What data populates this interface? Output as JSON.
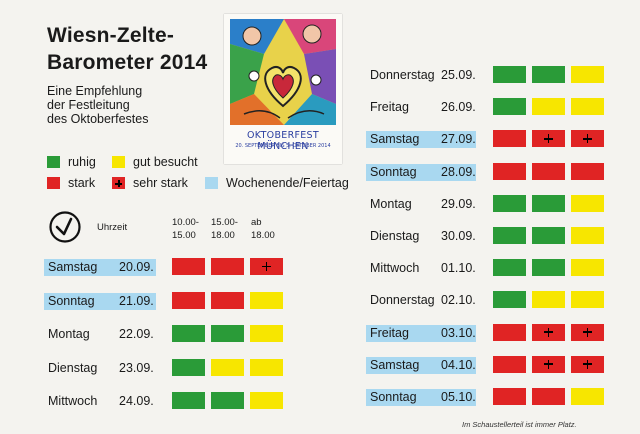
{
  "colors": {
    "ruhig": "#2a9b38",
    "gut": "#f7e600",
    "stark": "#e02424",
    "weekend": "#a9d8f0"
  },
  "title_line1": "Wiesn-Zelte-",
  "title_line2": "Barometer 2014",
  "subtitle": [
    "Eine Empfehlung",
    "der Festleitung",
    "des Oktoberfestes"
  ],
  "poster": {
    "title": "OKTOBERFEST MÜNCHEN",
    "dates": "20. SEPTEMBER BIS 5. OKTOBER 2014"
  },
  "legend": [
    {
      "key": "ruhig",
      "label": "ruhig"
    },
    {
      "key": "gut",
      "label": "gut besucht"
    },
    {
      "key": "stark",
      "label": "stark"
    },
    {
      "key": "sehr",
      "label": "sehr stark"
    },
    {
      "key": "weekend",
      "label": "Wochenende/Feiertag"
    }
  ],
  "uhrzeit": "Uhrzeit",
  "time_slots": [
    {
      "line1": "10.00-",
      "line2": "15.00"
    },
    {
      "line1": "15.00-",
      "line2": "18.00"
    },
    {
      "line1": "ab",
      "line2": "18.00"
    }
  ],
  "days_left": [
    {
      "day": "Samstag",
      "date": "20.09.",
      "weekend": true,
      "levels": [
        "stark",
        "stark",
        "sehr"
      ]
    },
    {
      "day": "Sonntag",
      "date": "21.09.",
      "weekend": true,
      "levels": [
        "stark",
        "stark",
        "gut"
      ]
    },
    {
      "day": "Montag",
      "date": "22.09.",
      "weekend": false,
      "levels": [
        "ruhig",
        "ruhig",
        "gut"
      ]
    },
    {
      "day": "Dienstag",
      "date": "23.09.",
      "weekend": false,
      "levels": [
        "ruhig",
        "gut",
        "gut"
      ]
    },
    {
      "day": "Mittwoch",
      "date": "24.09.",
      "weekend": false,
      "levels": [
        "ruhig",
        "ruhig",
        "gut"
      ]
    }
  ],
  "days_right": [
    {
      "day": "Donnerstag",
      "date": "25.09.",
      "weekend": false,
      "levels": [
        "ruhig",
        "ruhig",
        "gut"
      ]
    },
    {
      "day": "Freitag",
      "date": "26.09.",
      "weekend": false,
      "levels": [
        "ruhig",
        "gut",
        "gut"
      ]
    },
    {
      "day": "Samstag",
      "date": "27.09.",
      "weekend": true,
      "levels": [
        "stark",
        "sehr",
        "sehr"
      ]
    },
    {
      "day": "Sonntag",
      "date": "28.09.",
      "weekend": true,
      "levels": [
        "stark",
        "stark",
        "stark"
      ]
    },
    {
      "day": "Montag",
      "date": "29.09.",
      "weekend": false,
      "levels": [
        "ruhig",
        "ruhig",
        "gut"
      ]
    },
    {
      "day": "Dienstag",
      "date": "30.09.",
      "weekend": false,
      "levels": [
        "ruhig",
        "ruhig",
        "gut"
      ]
    },
    {
      "day": "Mittwoch",
      "date": "01.10.",
      "weekend": false,
      "levels": [
        "ruhig",
        "ruhig",
        "gut"
      ]
    },
    {
      "day": "Donnerstag",
      "date": "02.10.",
      "weekend": false,
      "levels": [
        "ruhig",
        "gut",
        "gut"
      ]
    },
    {
      "day": "Freitag",
      "date": "03.10.",
      "weekend": true,
      "levels": [
        "stark",
        "sehr",
        "sehr"
      ]
    },
    {
      "day": "Samstag",
      "date": "04.10.",
      "weekend": true,
      "levels": [
        "stark",
        "sehr",
        "sehr"
      ]
    },
    {
      "day": "Sonntag",
      "date": "05.10.",
      "weekend": true,
      "levels": [
        "stark",
        "stark",
        "gut"
      ]
    }
  ],
  "footnote": "Im Schaustellerteil ist immer Platz."
}
